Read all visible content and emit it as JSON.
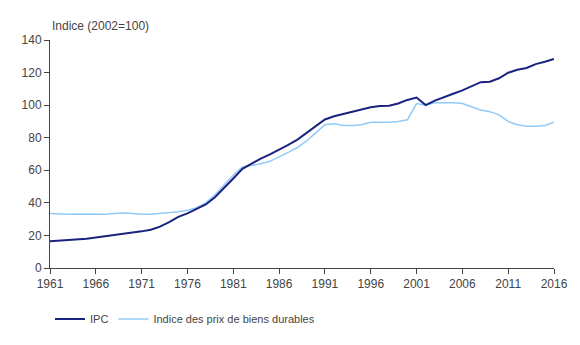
{
  "chart_data": {
    "type": "line",
    "y_label": "Indice (2002=100)",
    "x": [
      1961,
      1962,
      1963,
      1964,
      1965,
      1966,
      1967,
      1968,
      1969,
      1970,
      1971,
      1972,
      1973,
      1974,
      1975,
      1976,
      1977,
      1978,
      1979,
      1980,
      1981,
      1982,
      1983,
      1984,
      1985,
      1986,
      1987,
      1988,
      1989,
      1990,
      1991,
      1992,
      1993,
      1994,
      1995,
      1996,
      1997,
      1998,
      1999,
      2000,
      2001,
      2002,
      2003,
      2004,
      2005,
      2006,
      2007,
      2008,
      2009,
      2010,
      2011,
      2012,
      2013,
      2014,
      2015,
      2016
    ],
    "series": [
      {
        "name": "Indice des prix de biens durables",
        "color": "#90caf9",
        "values": [
          33.5,
          33.2,
          33.0,
          33.2,
          33.0,
          32.8,
          33.0,
          33.5,
          33.8,
          33.5,
          33.0,
          33.0,
          33.5,
          34.0,
          34.5,
          35.5,
          37.0,
          40.0,
          45.0,
          51.0,
          57.0,
          62.0,
          63.0,
          64.0,
          65.5,
          68.0,
          71.0,
          74.0,
          78.0,
          83.0,
          88.0,
          88.5,
          87.5,
          87.5,
          88.0,
          89.5,
          89.5,
          89.5,
          90.0,
          91.0,
          101.0,
          100.0,
          101.5,
          101.5,
          101.5,
          101.0,
          99.0,
          97.0,
          96.0,
          94.0,
          90.0,
          88.0,
          87.0,
          87.0,
          87.5,
          89.5
        ]
      },
      {
        "name": "IPC",
        "color": "#1a237e",
        "values": [
          16.5,
          16.8,
          17.1,
          17.5,
          18.0,
          18.7,
          19.4,
          20.2,
          21.1,
          21.9,
          22.5,
          23.5,
          25.4,
          28.2,
          31.4,
          33.5,
          36.0,
          39.0,
          43.5,
          49.0,
          55.0,
          60.9,
          64.2,
          67.2,
          69.8,
          72.5,
          75.6,
          78.8,
          82.9,
          87.0,
          91.2,
          93.2,
          94.5,
          95.7,
          97.4,
          98.7,
          99.5,
          99.7,
          101.0,
          103.2,
          104.7,
          100.0,
          102.8,
          104.7,
          107.0,
          109.1,
          111.5,
          114.1,
          114.4,
          116.5,
          119.9,
          121.7,
          122.8,
          125.2,
          126.6,
          128.4
        ]
      }
    ],
    "xlim": [
      1961,
      2016
    ],
    "xticks": [
      1961,
      1966,
      1971,
      1976,
      1981,
      1986,
      1991,
      1996,
      2001,
      2006,
      2011,
      2016
    ],
    "ylim": [
      0,
      140
    ],
    "yticks": [
      0,
      20,
      40,
      60,
      80,
      100,
      120,
      140
    ],
    "grid": false,
    "legend": "bottom"
  }
}
